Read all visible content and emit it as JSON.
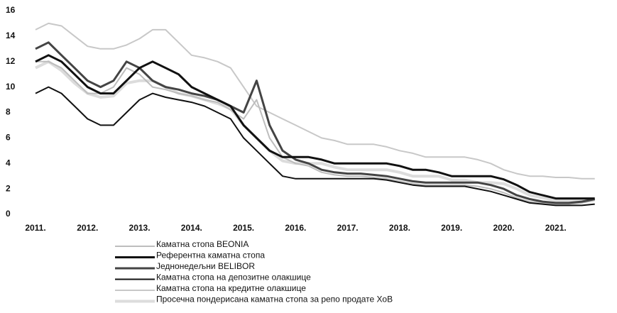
{
  "chart_data": {
    "type": "line",
    "x": [
      2011,
      2011.25,
      2011.5,
      2011.75,
      2012,
      2012.25,
      2012.5,
      2012.75,
      2013,
      2013.25,
      2013.5,
      2013.75,
      2014,
      2014.25,
      2014.5,
      2014.75,
      2015,
      2015.25,
      2015.5,
      2015.75,
      2016,
      2016.25,
      2016.5,
      2016.75,
      2017,
      2017.25,
      2017.5,
      2017.75,
      2018,
      2018.25,
      2018.5,
      2018.75,
      2019,
      2019.25,
      2019.5,
      2019.75,
      2020,
      2020.25,
      2020.5,
      2020.75,
      2021,
      2021.25,
      2021.5,
      2021.75
    ],
    "series": [
      {
        "name": "Каматна стопа BEONIA",
        "color": "#bdbdbd",
        "width": 2,
        "values": [
          12,
          12,
          11.5,
          10.5,
          9.5,
          9.5,
          10,
          11.5,
          11,
          10,
          9.8,
          9.5,
          9.3,
          9,
          8.8,
          8.2,
          7.5,
          9,
          6,
          4.5,
          4,
          3.8,
          3.3,
          3.1,
          3,
          3,
          2.9,
          2.8,
          2.6,
          2.4,
          2.3,
          2.3,
          2.3,
          2.3,
          2.2,
          2,
          1.7,
          1.3,
          1,
          0.9,
          0.8,
          0.8,
          0.9,
          1.1
        ]
      },
      {
        "name": "Референтна каматна стопа",
        "color": "#111111",
        "width": 3,
        "values": [
          12,
          12.5,
          12,
          11,
          10,
          9.5,
          9.5,
          10.5,
          11.5,
          12,
          11.5,
          11,
          10,
          9.5,
          9,
          8.5,
          7,
          6,
          5,
          4.5,
          4.5,
          4.5,
          4.3,
          4,
          4,
          4,
          4,
          4,
          3.8,
          3.5,
          3.5,
          3.3,
          3,
          3,
          3,
          3,
          2.75,
          2.3,
          1.75,
          1.5,
          1.25,
          1.25,
          1.25,
          1.25
        ]
      },
      {
        "name": "Једнонедељни BELIBOR",
        "color": "#444444",
        "width": 3,
        "values": [
          13,
          13.5,
          12.5,
          11.5,
          10.5,
          10,
          10.5,
          12,
          11.5,
          10.5,
          10,
          9.8,
          9.5,
          9.3,
          9,
          8.5,
          8,
          10.5,
          7,
          5,
          4.3,
          4,
          3.5,
          3.3,
          3.2,
          3.2,
          3.1,
          3,
          2.8,
          2.6,
          2.5,
          2.5,
          2.5,
          2.5,
          2.5,
          2.3,
          2,
          1.5,
          1.2,
          1,
          0.9,
          0.9,
          1,
          1.2
        ]
      },
      {
        "name": "Каматна стопа на депозитне олакшице",
        "color": "#111111",
        "width": 2,
        "values": [
          9.5,
          10,
          9.5,
          8.5,
          7.5,
          7,
          7,
          8,
          9,
          9.5,
          9.2,
          9,
          8.8,
          8.5,
          8,
          7.5,
          6,
          5,
          4,
          3,
          2.8,
          2.8,
          2.8,
          2.8,
          2.8,
          2.8,
          2.8,
          2.7,
          2.5,
          2.3,
          2.2,
          2.2,
          2.2,
          2.2,
          2,
          1.8,
          1.5,
          1.2,
          0.9,
          0.8,
          0.7,
          0.7,
          0.7,
          0.8
        ]
      },
      {
        "name": "Каматна стопа на кредитне олакшице",
        "color": "#c8c8c8",
        "width": 2,
        "values": [
          14.5,
          15,
          14.8,
          14,
          13.2,
          13,
          13,
          13.3,
          13.8,
          14.5,
          14.5,
          13.5,
          12.5,
          12.3,
          12,
          11.5,
          10,
          8.5,
          8,
          7.5,
          7,
          6.5,
          6,
          5.8,
          5.5,
          5.5,
          5.5,
          5.3,
          5,
          4.8,
          4.5,
          4.5,
          4.5,
          4.5,
          4.3,
          4,
          3.5,
          3.2,
          3,
          3,
          2.9,
          2.9,
          2.8,
          2.8
        ]
      },
      {
        "name": "Просечна пондерисана каматна стопа за репо продате ХоВ",
        "color": "#dcdcdc",
        "width": 4,
        "values": [
          11.5,
          12,
          11.3,
          10.3,
          9.5,
          9.2,
          9.3,
          10.3,
          10.5,
          10.5,
          10,
          9.5,
          9.3,
          9,
          8.7,
          8.3,
          7,
          6,
          5,
          4.2,
          4,
          4,
          4,
          3.7,
          3.5,
          3.5,
          3.5,
          3.5,
          3.3,
          3,
          3,
          3,
          2.7,
          2.7,
          2.5,
          2.5,
          2.4,
          2,
          1.5,
          1.3,
          1.1,
          1.1,
          1.1,
          1.2
        ]
      }
    ],
    "xlim": [
      2011,
      2022
    ],
    "xticks": [
      {
        "value": 2011,
        "label": "2011."
      },
      {
        "value": 2012,
        "label": "2012."
      },
      {
        "value": 2013,
        "label": "2013."
      },
      {
        "value": 2014,
        "label": "2014."
      },
      {
        "value": 2015,
        "label": "2015."
      },
      {
        "value": 2016,
        "label": "2016."
      },
      {
        "value": 2017,
        "label": "2017."
      },
      {
        "value": 2018,
        "label": "2018."
      },
      {
        "value": 2019,
        "label": "2019."
      },
      {
        "value": 2020,
        "label": "2020."
      },
      {
        "value": 2021,
        "label": "2021."
      }
    ],
    "ylim": [
      0,
      16
    ],
    "yticks": [
      0,
      2,
      4,
      6,
      8,
      10,
      12,
      14,
      16
    ],
    "grid": false
  }
}
